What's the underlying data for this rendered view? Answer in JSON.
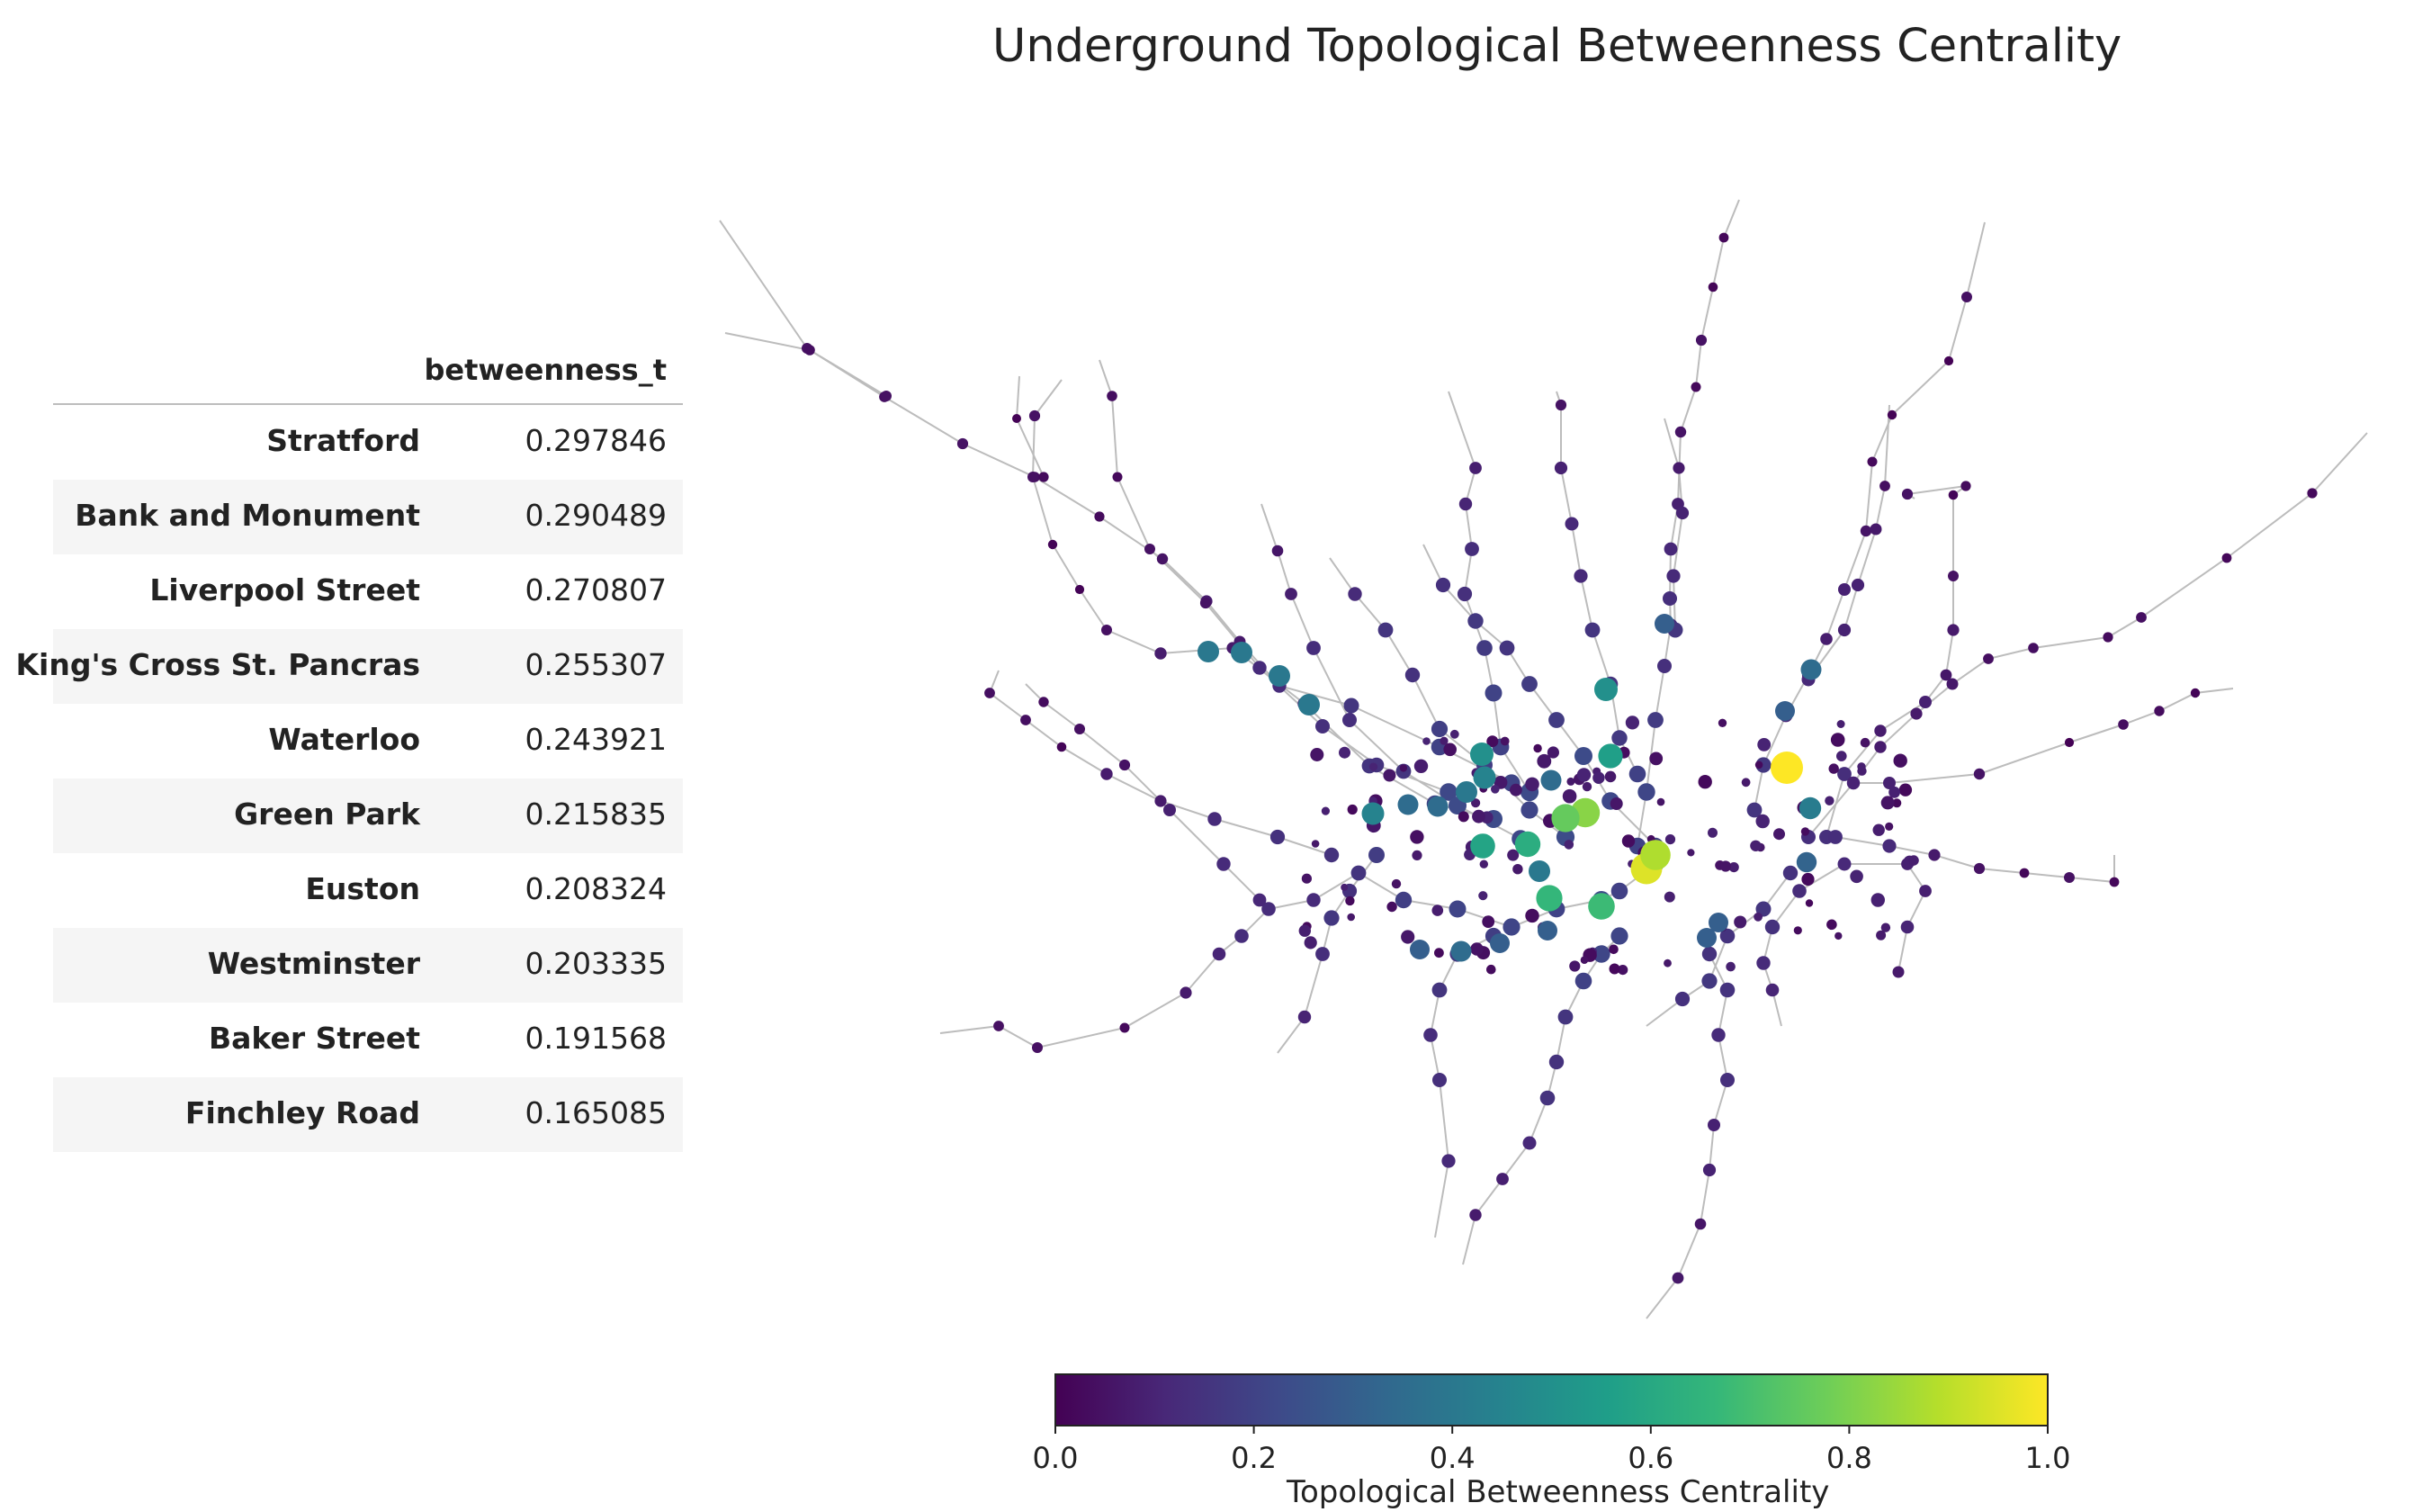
{
  "table": {
    "column_header": "betweenness_t",
    "rows": [
      {
        "station": "Stratford",
        "value": "0.297846"
      },
      {
        "station": "Bank and Monument",
        "value": "0.290489"
      },
      {
        "station": "Liverpool Street",
        "value": "0.270807"
      },
      {
        "station": "King's Cross St. Pancras",
        "value": "0.255307"
      },
      {
        "station": "Waterloo",
        "value": "0.243921"
      },
      {
        "station": "Green Park",
        "value": "0.215835"
      },
      {
        "station": "Euston",
        "value": "0.208324"
      },
      {
        "station": "Westminster",
        "value": "0.203335"
      },
      {
        "station": "Baker Street",
        "value": "0.191568"
      },
      {
        "station": "Finchley Road",
        "value": "0.165085"
      }
    ]
  },
  "chart_data": {
    "type": "scatter",
    "title": "Underground Topological Betweenness Centrality",
    "colorbar": {
      "label": "Topological Betweenness Centrality",
      "range": [
        0.0,
        1.0
      ],
      "ticks": [
        "0.0",
        "0.2",
        "0.4",
        "0.6",
        "0.8",
        "1.0"
      ],
      "colormap": "viridis"
    },
    "colors": {
      "edge": "#bcbcbc",
      "viridis": [
        "#440154",
        "#482878",
        "#3e4989",
        "#31688e",
        "#26828e",
        "#1f9e89",
        "#35b779",
        "#6ece58",
        "#b5de2b",
        "#fde725"
      ]
    },
    "axes": "off"
  }
}
